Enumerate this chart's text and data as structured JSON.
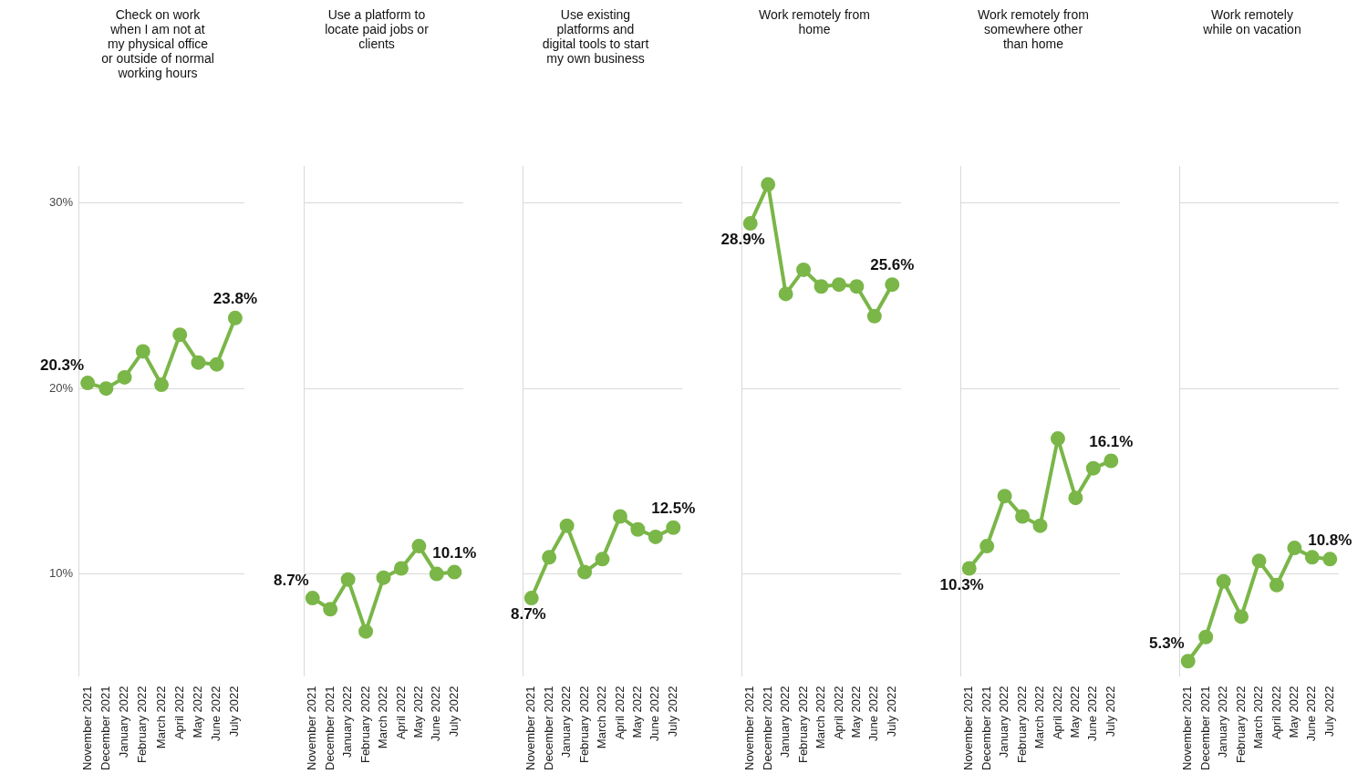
{
  "chart_data": [
    {
      "type": "line",
      "title": "Check on work when I am not at my physical office or outside of normal working hours",
      "categories": [
        "November 2021",
        "December 2021",
        "January 2022",
        "February 2022",
        "March 2022",
        "April 2022",
        "May 2022",
        "June 2022",
        "July 2022"
      ],
      "series": [
        {
          "color": "#7ab648",
          "values": [
            20.3,
            20.0,
            20.6,
            22.0,
            20.2,
            22.9,
            21.4,
            21.3,
            23.8
          ],
          "value_labels": [
            "20.3%",
            null,
            null,
            null,
            null,
            null,
            null,
            null,
            "23.8%"
          ]
        }
      ],
      "ylim": [
        4.5,
        32
      ],
      "yticks": [
        {
          "value": 10,
          "label": "10%"
        },
        {
          "value": 20,
          "label": "20%"
        },
        {
          "value": 30,
          "label": "30%"
        }
      ],
      "grid": "y",
      "marker": "circle",
      "legend": false
    },
    {
      "type": "line",
      "title": "Use a platform to locate paid jobs or clients",
      "categories": [
        "November 2021",
        "December 2021",
        "January 2022",
        "February 2022",
        "March 2022",
        "April 2022",
        "May 2022",
        "June 2022",
        "July 2022"
      ],
      "series": [
        {
          "color": "#7ab648",
          "values": [
            8.7,
            8.1,
            9.7,
            6.9,
            9.8,
            10.3,
            11.5,
            10.0,
            10.1
          ],
          "value_labels": [
            "8.7%",
            null,
            null,
            null,
            null,
            null,
            null,
            null,
            "10.1%"
          ]
        }
      ],
      "ylim": [
        4.5,
        32
      ],
      "yticks": [
        10,
        20,
        30
      ],
      "grid": "y",
      "marker": "circle",
      "legend": false,
      "tick_labels": "x"
    },
    {
      "type": "line",
      "title": "Use existing platforms and digital tools to start my own business",
      "categories": [
        "November 2021",
        "December 2021",
        "January 2022",
        "February 2022",
        "March 2022",
        "April 2022",
        "May 2022",
        "June 2022",
        "July 2022"
      ],
      "series": [
        {
          "color": "#7ab648",
          "values": [
            8.7,
            10.9,
            12.6,
            10.1,
            10.8,
            13.1,
            12.4,
            12.0,
            12.5
          ],
          "value_labels": [
            "8.7%",
            null,
            null,
            null,
            null,
            null,
            null,
            null,
            "12.5%"
          ]
        }
      ],
      "ylim": [
        4.5,
        32
      ],
      "yticks": [
        10,
        20,
        30
      ],
      "grid": "y",
      "marker": "circle",
      "legend": false,
      "tick_labels": "x"
    },
    {
      "type": "line",
      "title": "Work remotely from home",
      "categories": [
        "November 2021",
        "December 2021",
        "January 2022",
        "February 2022",
        "March 2022",
        "April 2022",
        "May 2022",
        "June 2022",
        "July 2022"
      ],
      "series": [
        {
          "color": "#7ab648",
          "values": [
            28.9,
            31.0,
            25.1,
            26.4,
            25.5,
            25.6,
            25.5,
            23.9,
            25.6
          ],
          "value_labels": [
            "28.9%",
            null,
            null,
            null,
            null,
            null,
            null,
            null,
            "25.6%"
          ]
        }
      ],
      "ylim": [
        4.5,
        32
      ],
      "yticks": [
        10,
        20,
        30
      ],
      "grid": "y",
      "marker": "circle",
      "legend": false,
      "tick_labels": "x"
    },
    {
      "type": "line",
      "title": "Work remotely from somewhere other than home",
      "categories": [
        "November 2021",
        "December 2021",
        "January 2022",
        "February 2022",
        "March 2022",
        "April 2022",
        "May 2022",
        "June 2022",
        "July 2022"
      ],
      "series": [
        {
          "color": "#7ab648",
          "values": [
            10.3,
            11.5,
            14.2,
            13.1,
            12.6,
            17.3,
            14.1,
            15.7,
            16.1
          ],
          "value_labels": [
            "10.3%",
            null,
            null,
            null,
            null,
            null,
            null,
            null,
            "16.1%"
          ]
        }
      ],
      "ylim": [
        4.5,
        32
      ],
      "yticks": [
        10,
        20,
        30
      ],
      "grid": "y",
      "marker": "circle",
      "legend": false,
      "tick_labels": "x"
    },
    {
      "type": "line",
      "title": "Work remotely while on vacation",
      "categories": [
        "November 2021",
        "December 2021",
        "January 2022",
        "February 2022",
        "March 2022",
        "April 2022",
        "May 2022",
        "June 2022",
        "July 2022"
      ],
      "series": [
        {
          "color": "#7ab648",
          "values": [
            5.3,
            6.6,
            9.6,
            7.7,
            10.7,
            9.4,
            11.4,
            10.9,
            10.8
          ],
          "value_labels": [
            "5.3%",
            null,
            null,
            null,
            null,
            null,
            null,
            null,
            "10.8%"
          ]
        }
      ],
      "ylim": [
        4.5,
        32
      ],
      "yticks": [
        10,
        20,
        30
      ],
      "grid": "y",
      "marker": "circle",
      "legend": false,
      "tick_labels": "x"
    }
  ]
}
